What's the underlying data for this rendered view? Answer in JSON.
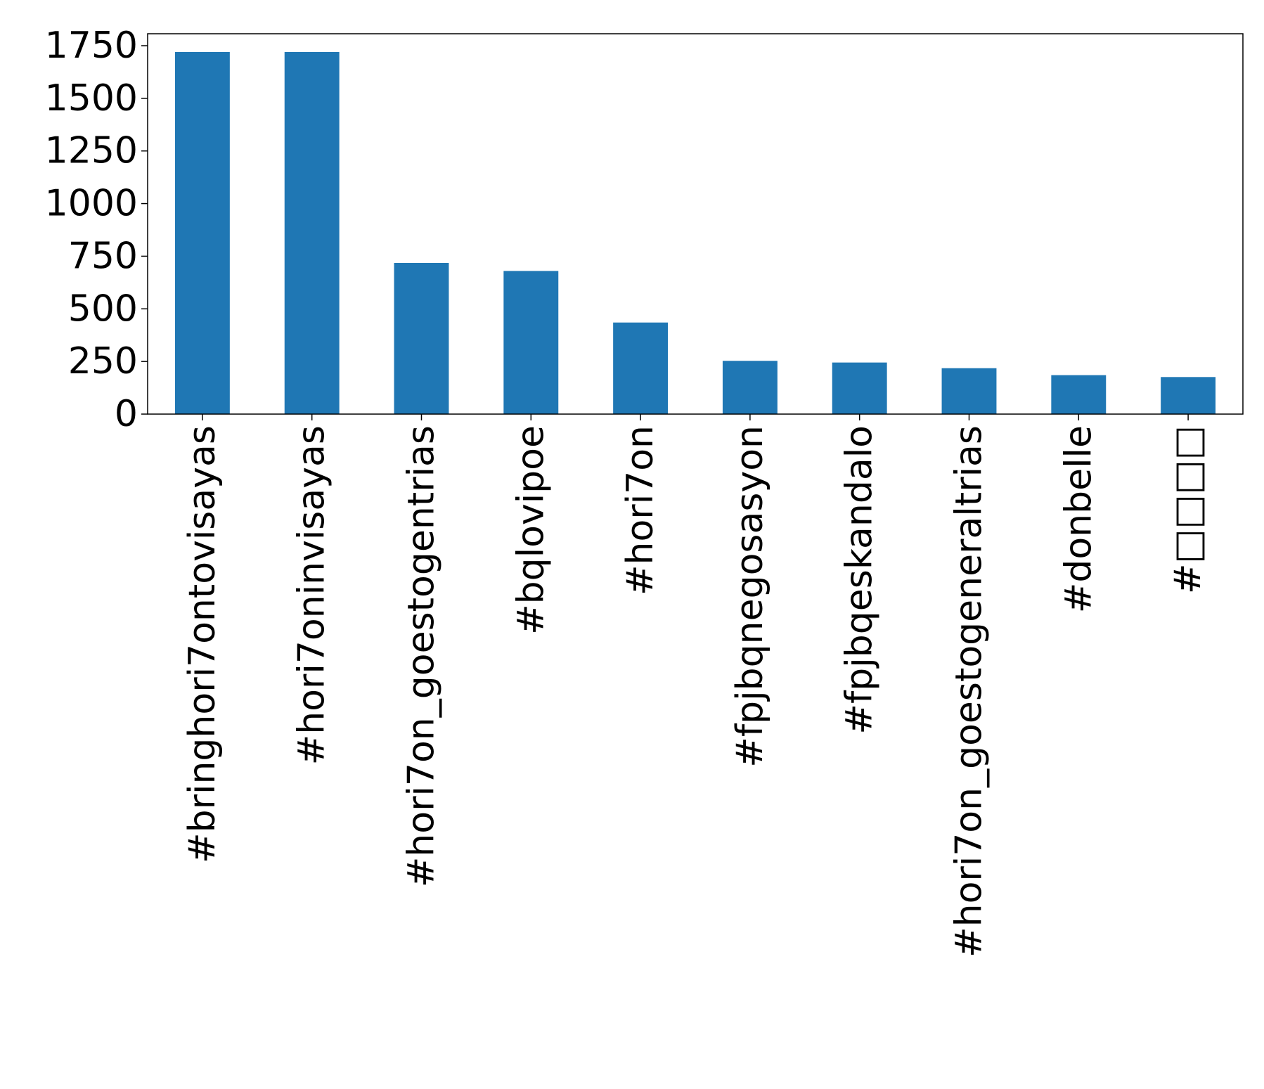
{
  "chart_data": {
    "type": "bar",
    "title": "",
    "xlabel": "",
    "ylabel": "",
    "categories": [
      "#bringhori7ontovisayas",
      "#hori7oninvisayas",
      "#hori7on_goestogentrias",
      "#bqlovipoe",
      "#hori7on",
      "#fpjbqnegosasyon",
      "#fpjbqeskandalo",
      "#hori7on_goestogeneraltrias",
      "#donbelle",
      "#□□□□"
    ],
    "values": [
      1720,
      1720,
      718,
      680,
      435,
      253,
      245,
      218,
      185,
      176
    ],
    "ylim": [
      0,
      1800
    ],
    "yticks": [
      0,
      250,
      500,
      750,
      1000,
      1250,
      1500,
      1750
    ],
    "ytick_labels": [
      "0",
      "250",
      "500",
      "750",
      "1000",
      "1250",
      "1500",
      "1750"
    ],
    "grid": false,
    "legend": "none",
    "colors": {
      "bar": "#1f77b4",
      "axis": "#000000",
      "background": "#ffffff"
    }
  }
}
